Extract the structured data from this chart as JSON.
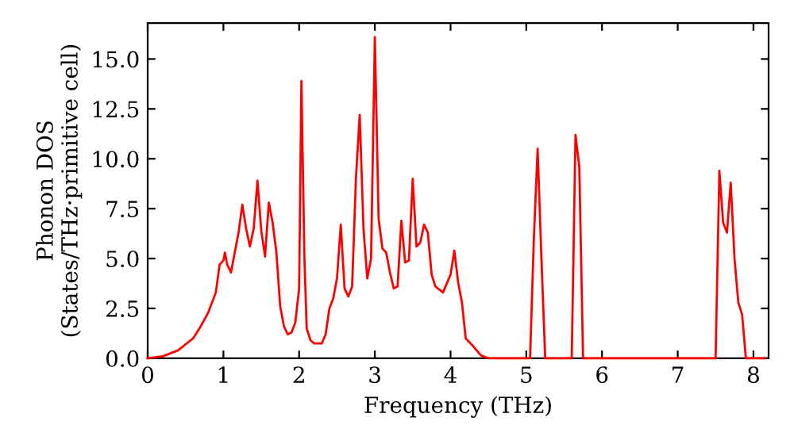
{
  "chart_data": {
    "type": "line",
    "xlabel": "Frequency (THz)",
    "ylabel": "Phonon DOS\n(States/THz·primitive cell)",
    "x": [
      0,
      0.2,
      0.4,
      0.6,
      0.7,
      0.8,
      0.9,
      0.95,
      1.0,
      1.02,
      1.05,
      1.1,
      1.15,
      1.2,
      1.25,
      1.3,
      1.35,
      1.4,
      1.45,
      1.5,
      1.55,
      1.6,
      1.65,
      1.7,
      1.75,
      1.8,
      1.85,
      1.9,
      1.95,
      2.0,
      2.03,
      2.07,
      2.1,
      2.15,
      2.2,
      2.3,
      2.35,
      2.4,
      2.45,
      2.5,
      2.55,
      2.6,
      2.65,
      2.7,
      2.75,
      2.8,
      2.85,
      2.9,
      2.95,
      3.0,
      3.05,
      3.1,
      3.15,
      3.2,
      3.25,
      3.3,
      3.35,
      3.4,
      3.45,
      3.5,
      3.55,
      3.6,
      3.65,
      3.7,
      3.75,
      3.8,
      3.9,
      4.0,
      4.05,
      4.1,
      4.15,
      4.2,
      4.3,
      4.4,
      4.5,
      5.05,
      5.1,
      5.15,
      5.2,
      5.25,
      5.6,
      5.65,
      5.7,
      5.75,
      7.5,
      7.55,
      7.6,
      7.65,
      7.7,
      7.75,
      7.8,
      7.85,
      7.9,
      8.15
    ],
    "series": [
      {
        "color": "#ff0000",
        "values": [
          0,
          0.1,
          0.4,
          1.0,
          1.6,
          2.3,
          3.3,
          4.7,
          4.9,
          5.3,
          4.7,
          4.3,
          5.3,
          6.3,
          7.7,
          6.5,
          5.6,
          6.5,
          8.9,
          6.4,
          5.1,
          7.8,
          6.8,
          5.3,
          2.6,
          1.6,
          1.2,
          1.3,
          1.8,
          3.5,
          13.9,
          5,
          1.5,
          0.9,
          0.75,
          0.75,
          1.2,
          2.5,
          3.0,
          4,
          6.7,
          3.5,
          3.1,
          3.6,
          9,
          12.2,
          6.5,
          4.0,
          5.0,
          16.1,
          7,
          5.5,
          5.3,
          4.3,
          3.5,
          3.6,
          6.9,
          4.8,
          4.9,
          9.0,
          5.6,
          5.8,
          6.7,
          6.3,
          4.2,
          3.6,
          3.3,
          4.2,
          5.4,
          3.8,
          2.8,
          1.0,
          0.6,
          0.15,
          0,
          0,
          6,
          10.5,
          5,
          0,
          0,
          11.2,
          9.6,
          0,
          0,
          9.4,
          6.8,
          6.3,
          8.8,
          5,
          2.8,
          2.2,
          0,
          0
        ]
      }
    ],
    "xlim": [
      0,
      8.2
    ],
    "ylim": [
      0,
      16.8
    ],
    "xticks": [
      0,
      1,
      2,
      3,
      4,
      5,
      6,
      7,
      8
    ],
    "yticks": [
      {
        "value": 0,
        "label": "0.0"
      },
      2.5,
      {
        "value": 5,
        "label": "5.0"
      },
      7.5,
      {
        "value": 10,
        "label": "10.0"
      },
      12.5,
      {
        "value": 15,
        "label": "15.0"
      }
    ],
    "grid": false,
    "legend": false
  }
}
